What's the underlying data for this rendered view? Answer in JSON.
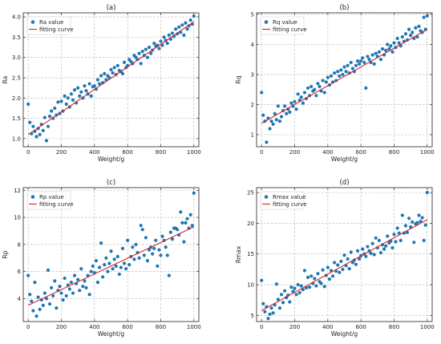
{
  "chart_data": [
    {
      "type": "scatter",
      "title": "(a)",
      "xlabel": "Weight/g",
      "ylabel": "Ra",
      "xlim": [
        -30,
        1030
      ],
      "ylim": [
        0.8,
        4.1
      ],
      "xticks": [
        "0",
        "200",
        "400",
        "600",
        "800",
        "1000"
      ],
      "yticks": [
        "1.0",
        "1.5",
        "2.0",
        "2.5",
        "3.0",
        "3.5",
        "4.0"
      ],
      "grid": true,
      "legend_position": "top-left",
      "series": [
        {
          "name": "Ra value",
          "kind": "scatter",
          "x": [
            0,
            10,
            20,
            30,
            40,
            50,
            60,
            70,
            80,
            90,
            100,
            110,
            120,
            130,
            140,
            150,
            160,
            170,
            180,
            190,
            200,
            210,
            220,
            230,
            240,
            250,
            260,
            270,
            280,
            290,
            300,
            310,
            320,
            330,
            340,
            350,
            360,
            370,
            380,
            390,
            400,
            410,
            420,
            430,
            440,
            450,
            460,
            470,
            480,
            490,
            500,
            510,
            520,
            530,
            540,
            550,
            560,
            570,
            580,
            590,
            600,
            610,
            620,
            630,
            640,
            650,
            660,
            670,
            680,
            690,
            700,
            710,
            720,
            730,
            740,
            750,
            760,
            770,
            780,
            790,
            800,
            810,
            820,
            830,
            840,
            850,
            860,
            870,
            880,
            890,
            900,
            910,
            920,
            930,
            940,
            950,
            960,
            970,
            980,
            990,
            1000
          ],
          "y": [
            1.85,
            1.4,
            1.12,
            1.3,
            1.18,
            1.05,
            1.25,
            1.1,
            1.35,
            1.2,
            1.52,
            0.95,
            1.3,
            1.55,
            1.68,
            1.5,
            1.75,
            1.58,
            1.9,
            1.62,
            1.92,
            1.68,
            2.05,
            1.85,
            2.0,
            1.78,
            2.1,
            1.95,
            2.2,
            1.88,
            2.25,
            2.05,
            2.15,
            2.0,
            2.3,
            2.18,
            2.1,
            2.35,
            2.05,
            2.28,
            2.3,
            2.22,
            2.45,
            2.35,
            2.55,
            2.38,
            2.6,
            2.45,
            2.55,
            2.5,
            2.7,
            2.62,
            2.75,
            2.58,
            2.8,
            2.68,
            2.65,
            2.6,
            2.88,
            2.75,
            2.8,
            2.95,
            2.9,
            2.85,
            3.05,
            3.0,
            2.95,
            3.1,
            2.85,
            3.15,
            3.05,
            3.2,
            3.0,
            3.25,
            3.1,
            3.18,
            3.35,
            3.28,
            3.3,
            3.22,
            3.4,
            3.3,
            3.5,
            3.42,
            3.35,
            3.55,
            3.45,
            3.6,
            3.52,
            3.7,
            3.58,
            3.75,
            3.62,
            3.8,
            3.55,
            3.85,
            3.7,
            3.78,
            3.92,
            3.82,
            4.02
          ]
        },
        {
          "name": "fitting curve",
          "kind": "line",
          "x": [
            0,
            1000
          ],
          "y": [
            1.1,
            3.88
          ]
        }
      ]
    },
    {
      "type": "scatter",
      "title": "(b)",
      "xlabel": "Weight/g",
      "ylabel": "Rq",
      "xlim": [
        -30,
        1030
      ],
      "ylim": [
        0.6,
        5.05
      ],
      "xticks": [
        "0",
        "200",
        "400",
        "600",
        "800",
        "1000"
      ],
      "yticks": [
        "1",
        "2",
        "3",
        "4",
        "5"
      ],
      "grid": true,
      "legend_position": "top-left",
      "series": [
        {
          "name": "Rq value",
          "kind": "scatter",
          "x": [
            0,
            10,
            20,
            30,
            40,
            50,
            60,
            70,
            80,
            90,
            100,
            110,
            120,
            130,
            140,
            150,
            160,
            170,
            180,
            190,
            200,
            210,
            220,
            230,
            240,
            250,
            260,
            270,
            280,
            290,
            300,
            310,
            320,
            330,
            340,
            350,
            360,
            370,
            380,
            390,
            400,
            410,
            420,
            430,
            440,
            450,
            460,
            470,
            480,
            490,
            500,
            510,
            520,
            530,
            540,
            550,
            560,
            570,
            580,
            590,
            600,
            610,
            620,
            630,
            640,
            650,
            660,
            670,
            680,
            690,
            700,
            710,
            720,
            730,
            740,
            750,
            760,
            770,
            780,
            790,
            800,
            810,
            820,
            830,
            840,
            850,
            860,
            870,
            880,
            890,
            900,
            910,
            920,
            930,
            940,
            950,
            960,
            970,
            980,
            990,
            1000
          ],
          "y": [
            2.4,
            1.65,
            1.45,
            0.75,
            1.55,
            1.2,
            1.45,
            1.35,
            1.7,
            1.5,
            1.95,
            1.45,
            1.6,
            1.8,
            1.95,
            1.7,
            1.85,
            1.75,
            2.05,
            1.95,
            2.1,
            1.85,
            2.35,
            2.15,
            2.25,
            2.05,
            2.4,
            2.2,
            2.55,
            2.3,
            2.6,
            2.45,
            2.5,
            2.3,
            2.7,
            2.6,
            2.45,
            2.8,
            2.4,
            2.75,
            2.9,
            2.65,
            2.95,
            2.75,
            3.05,
            2.8,
            3.1,
            2.95,
            3.15,
            3.0,
            3.25,
            3.1,
            3.3,
            3.05,
            3.4,
            3.2,
            3.1,
            3.3,
            3.45,
            3.35,
            3.45,
            3.55,
            3.4,
            2.55,
            3.6,
            3.5,
            3.4,
            3.65,
            3.35,
            3.7,
            3.6,
            3.75,
            3.5,
            3.85,
            3.65,
            3.8,
            4.0,
            3.85,
            3.95,
            3.75,
            4.05,
            3.9,
            4.2,
            4.05,
            3.95,
            4.25,
            4.1,
            4.35,
            4.15,
            4.5,
            4.3,
            4.4,
            4.2,
            4.55,
            4.25,
            4.6,
            4.45,
            4.4,
            4.9,
            4.5,
            4.95
          ]
        },
        {
          "name": "fitting curve",
          "kind": "line",
          "x": [
            0,
            1000
          ],
          "y": [
            1.38,
            4.5
          ]
        }
      ]
    },
    {
      "type": "scatter",
      "title": "(c)",
      "xlabel": "Weight/g",
      "ylabel": "Rp",
      "xlim": [
        -30,
        1030
      ],
      "ylim": [
        2.3,
        12.2
      ],
      "xticks": [
        "0",
        "200",
        "400",
        "600",
        "800",
        "1000"
      ],
      "yticks": [
        "4",
        "6",
        "8",
        "10",
        "12"
      ],
      "grid": true,
      "legend_position": "top-left",
      "series": [
        {
          "name": "Rp value",
          "kind": "scatter",
          "x": [
            0,
            10,
            20,
            30,
            40,
            50,
            60,
            70,
            80,
            90,
            100,
            110,
            120,
            130,
            140,
            150,
            160,
            170,
            180,
            190,
            200,
            210,
            220,
            230,
            240,
            250,
            260,
            270,
            280,
            290,
            300,
            310,
            320,
            330,
            340,
            350,
            360,
            370,
            380,
            390,
            400,
            410,
            420,
            430,
            440,
            450,
            460,
            470,
            480,
            490,
            500,
            510,
            520,
            530,
            540,
            550,
            560,
            570,
            580,
            590,
            600,
            610,
            620,
            630,
            640,
            650,
            660,
            670,
            680,
            690,
            700,
            710,
            720,
            730,
            740,
            750,
            760,
            770,
            780,
            790,
            800,
            810,
            820,
            830,
            840,
            850,
            860,
            870,
            880,
            890,
            900,
            910,
            920,
            930,
            940,
            950,
            960,
            970,
            980,
            990,
            1000
          ],
          "y": [
            5.7,
            4.3,
            3.8,
            3.1,
            5.2,
            2.7,
            4.1,
            3.2,
            3.9,
            3.5,
            4.4,
            4.0,
            6.1,
            3.6,
            4.8,
            4.2,
            5.3,
            3.3,
            4.6,
            4.9,
            4.4,
            3.9,
            5.5,
            4.2,
            5.0,
            4.7,
            5.2,
            4.4,
            5.7,
            5.1,
            5.4,
            4.6,
            6.2,
            4.9,
            5.3,
            4.8,
            5.7,
            4.3,
            6.0,
            6.4,
            5.9,
            6.8,
            5.2,
            6.3,
            8.1,
            5.6,
            6.5,
            7.0,
            6.0,
            6.6,
            7.5,
            6.2,
            6.9,
            6.4,
            7.1,
            5.8,
            6.3,
            7.7,
            6.6,
            6.2,
            8.3,
            6.5,
            7.1,
            7.8,
            6.9,
            8.0,
            7.4,
            7.0,
            9.4,
            9.1,
            7.2,
            8.5,
            6.8,
            7.6,
            7.8,
            7.3,
            7.7,
            8.3,
            6.4,
            7.6,
            7.2,
            8.6,
            8.3,
            7.8,
            7.2,
            5.7,
            8.9,
            8.4,
            9.2,
            9.2,
            9.1,
            8.7,
            10.4,
            9.6,
            8.2,
            9.6,
            9.9,
            9.2,
            10.2,
            9.4,
            11.8
          ]
        },
        {
          "name": "fitting curve",
          "kind": "line",
          "x": [
            0,
            1000
          ],
          "y": [
            3.5,
            9.3
          ]
        }
      ]
    },
    {
      "type": "scatter",
      "title": "(d)",
      "xlabel": "Weight/g",
      "ylabel": "Rmax",
      "xlim": [
        -30,
        1030
      ],
      "ylim": [
        4.0,
        25.8
      ],
      "xticks": [
        "0",
        "200",
        "400",
        "600",
        "800",
        "1000"
      ],
      "yticks": [
        "5",
        "10",
        "15",
        "20",
        "25"
      ],
      "grid": true,
      "legend_position": "top-left",
      "series": [
        {
          "name": "Rmax value",
          "kind": "scatter",
          "x": [
            0,
            10,
            20,
            30,
            40,
            50,
            60,
            70,
            80,
            90,
            100,
            110,
            120,
            130,
            140,
            150,
            160,
            170,
            180,
            190,
            200,
            210,
            220,
            230,
            240,
            250,
            260,
            270,
            280,
            290,
            300,
            310,
            320,
            330,
            340,
            350,
            360,
            370,
            380,
            390,
            400,
            410,
            420,
            430,
            440,
            450,
            460,
            470,
            480,
            490,
            500,
            510,
            520,
            530,
            540,
            550,
            560,
            570,
            580,
            590,
            600,
            610,
            620,
            630,
            640,
            650,
            660,
            670,
            680,
            690,
            700,
            710,
            720,
            730,
            740,
            750,
            760,
            770,
            780,
            790,
            800,
            810,
            820,
            830,
            840,
            850,
            860,
            870,
            880,
            890,
            900,
            910,
            920,
            930,
            940,
            950,
            960,
            970,
            980,
            990,
            1000
          ],
          "y": [
            10.7,
            6.9,
            5.6,
            6.4,
            4.5,
            5.2,
            6.2,
            5.4,
            6.7,
            10.1,
            7.6,
            6.2,
            8.4,
            7.1,
            9.0,
            7.9,
            8.3,
            7.2,
            9.6,
            8.9,
            9.4,
            8.4,
            10.0,
            8.7,
            9.8,
            9.2,
            12.3,
            9.5,
            11.2,
            9.6,
            11.4,
            10.2,
            11.0,
            9.8,
            11.8,
            10.5,
            10.2,
            12.4,
            9.7,
            11.5,
            12.8,
            10.9,
            12.3,
            11.4,
            13.6,
            12.2,
            13.2,
            12.0,
            13.8,
            12.5,
            14.8,
            13.1,
            14.2,
            12.6,
            15.3,
            13.6,
            14.0,
            13.3,
            15.5,
            14.2,
            14.7,
            15.8,
            15.0,
            14.6,
            16.2,
            15.5,
            15.1,
            16.7,
            14.9,
            17.6,
            16.0,
            17.2,
            15.2,
            16.5,
            15.8,
            16.3,
            17.9,
            16.8,
            17.1,
            16.0,
            18.2,
            17.0,
            19.2,
            18.4,
            17.2,
            21.3,
            18.4,
            19.6,
            18.5,
            20.8,
            19.4,
            20.2,
            16.9,
            19.9,
            20.1,
            21.3,
            20.3,
            20.9,
            17.2,
            19.7,
            25.0
          ]
        },
        {
          "name": "fitting curve",
          "kind": "line",
          "x": [
            0,
            1000
          ],
          "y": [
            5.8,
            20.6
          ]
        }
      ]
    }
  ]
}
